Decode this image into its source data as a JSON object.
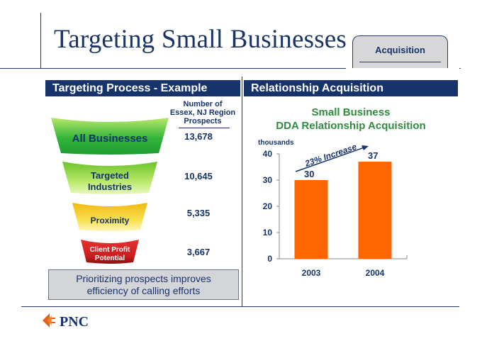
{
  "slide": {
    "title": "Targeting Small Businesses",
    "tab_label": "Acquisition"
  },
  "colors": {
    "navy": "#17336b",
    "green_title": "#2f8b3d",
    "bar": "#ff6600",
    "funnel_green_dark": "#1e9c32",
    "funnel_green_light": "#b9e86a",
    "funnel_yellow": "#f5d21f",
    "funnel_red": "#c81e1e"
  },
  "left_panel": {
    "header": "Targeting Process - Example",
    "column_header": [
      "Number of",
      "Essex, NJ Region",
      "Prospects"
    ],
    "stages": [
      {
        "label": [
          "All Businesses"
        ],
        "value": "13,678",
        "color": "#1e9c32"
      },
      {
        "label": [
          "Targeted",
          "Industries"
        ],
        "value": "10,645",
        "color": "#7ccf34"
      },
      {
        "label": [
          "Proximity"
        ],
        "value": "5,335",
        "color": "#f5d21f"
      },
      {
        "label": [
          "Client Profit",
          "Potential"
        ],
        "value": "3,667",
        "color": "#c81e1e"
      }
    ],
    "callout": [
      "Prioritizing prospects improves",
      "efficiency of calling efforts"
    ]
  },
  "right_panel": {
    "header": "Relationship Acquisition"
  },
  "chart_data": {
    "type": "bar",
    "title": [
      "Small Business",
      "DDA Relationship Acquisition"
    ],
    "ylabel": "thousands",
    "categories": [
      "2003",
      "2004"
    ],
    "values": [
      30,
      37
    ],
    "data_labels": [
      "30",
      "37"
    ],
    "ylim": [
      0,
      40
    ],
    "yticks": [
      0,
      10,
      20,
      30,
      40
    ],
    "grid": false,
    "annotation": "23% Increase"
  },
  "logo": {
    "text": "PNC",
    "mark": "pnc-logo-mark"
  }
}
